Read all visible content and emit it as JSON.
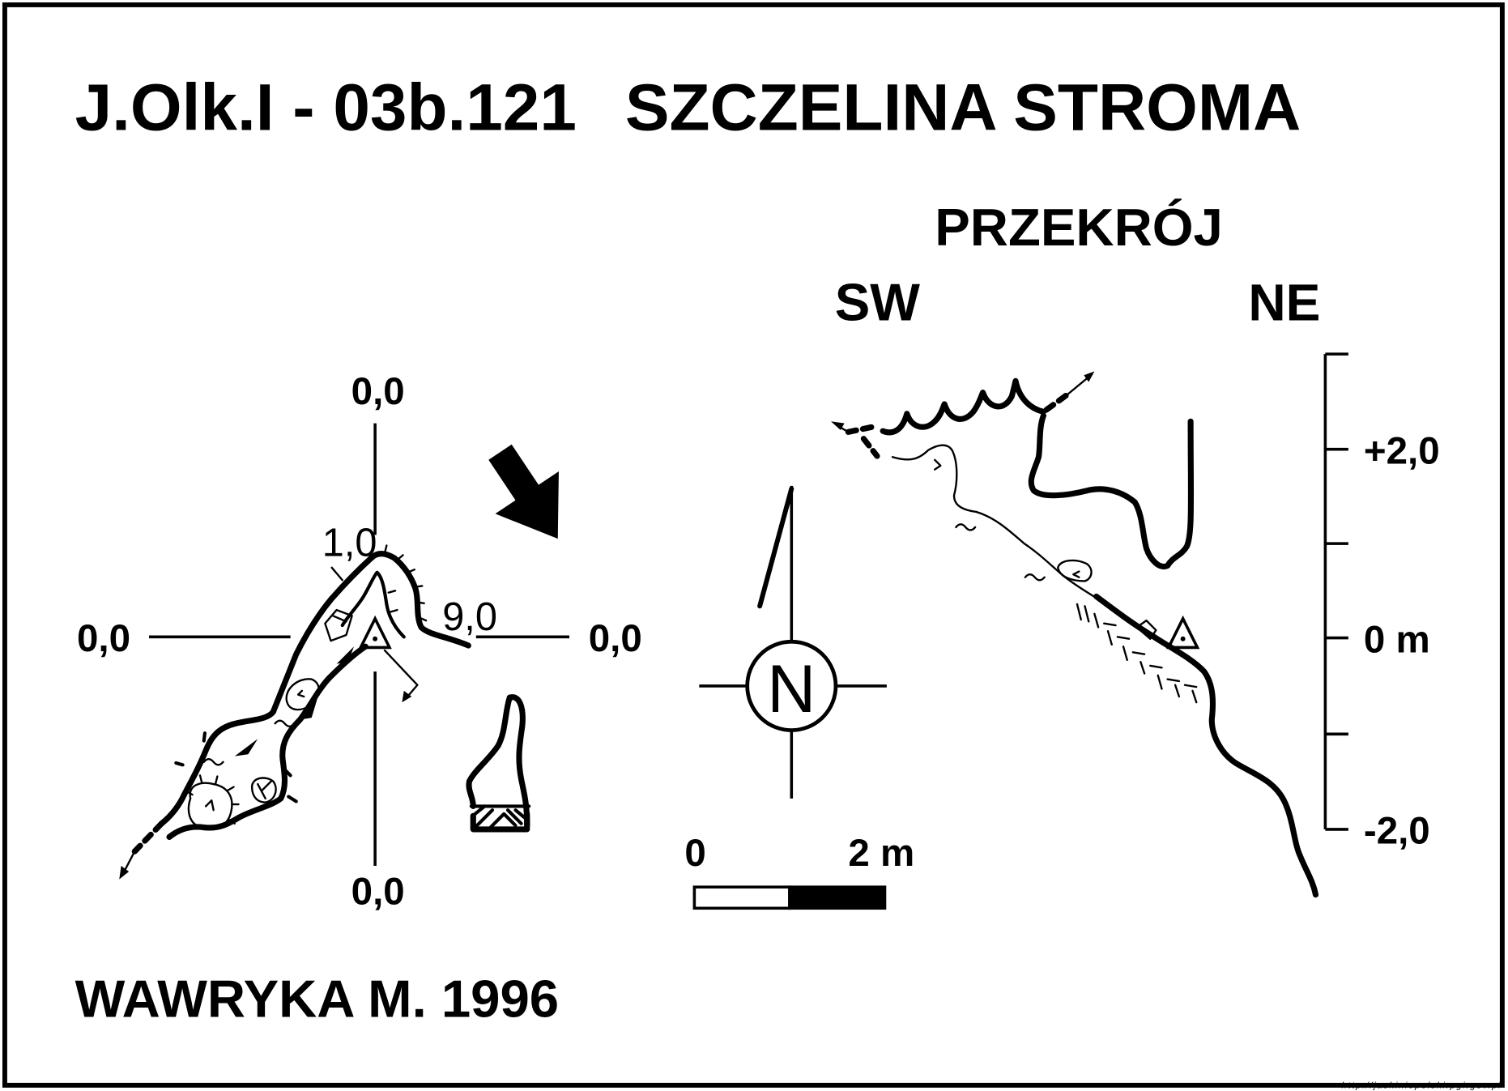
{
  "title": {
    "code": "J.Olk.I - 03b.121",
    "name": "SZCZELINA STROMA"
  },
  "plan": {
    "datum_labels": {
      "top": "0,0",
      "left": "0,0",
      "right": "0,0",
      "bottom": "0,0"
    },
    "depth_marks": [
      "1,0",
      "9,0"
    ]
  },
  "section": {
    "title": "PRZEKRÓJ",
    "left_direction": "SW",
    "right_direction": "NE",
    "depth_scale": {
      "labels": [
        "+2,0",
        "0 m",
        "-2,0"
      ]
    }
  },
  "compass": {
    "north_label": "N"
  },
  "scale_bar": {
    "start_label": "0",
    "end_label": "2 m"
  },
  "author": "WAWRYKA M. 1996",
  "source": "http://jaskiniepolski.pgi.gov.pl",
  "colors": {
    "ink": "#000000",
    "paper": "#ffffff"
  },
  "icons": {
    "survey_station": "survey-station-icon",
    "entrance_direction": "entrance-direction-arrow-icon",
    "north": "north-arrow-icon"
  }
}
